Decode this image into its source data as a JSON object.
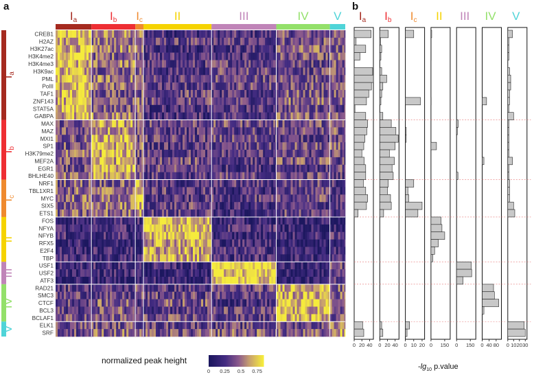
{
  "figure": {
    "panel_a": "a",
    "panel_b": "b",
    "col_groups": [
      {
        "main": "I",
        "sub": "a",
        "color": "#a52a1f"
      },
      {
        "main": "I",
        "sub": "b",
        "color": "#ee2e33"
      },
      {
        "main": "I",
        "sub": "c",
        "color": "#ef8a2e"
      },
      {
        "main": "II",
        "sub": "",
        "color": "#f5d300"
      },
      {
        "main": "III",
        "sub": "",
        "color": "#c084b8"
      },
      {
        "main": "IV",
        "sub": "",
        "color": "#93e06a"
      },
      {
        "main": "V",
        "sub": "",
        "color": "#4fd4d8"
      }
    ],
    "rows": [
      "CREB1",
      "H2AZ",
      "H3K27ac",
      "H3K4me2",
      "H3K4me3",
      "H3K9ac",
      "PML",
      "PolII",
      "TAF1",
      "ZNF143",
      "STAT5A",
      "GABPA",
      "MAX",
      "MAZ",
      "MXI1",
      "SP1",
      "H3K79me2",
      "MEF2A",
      "EGR1",
      "BHLHE40",
      "NRF1",
      "TBL1XR1",
      "MYC",
      "SIX5",
      "ETS1",
      "FOS",
      "NFYA",
      "NFYB",
      "RFX5",
      "E2F4",
      "TBP",
      "USF1",
      "USF2",
      "ATF3",
      "RAD21",
      "SMC3",
      "CTCF",
      "BCL3",
      "BCLAF1",
      "ELK1",
      "SRF"
    ],
    "legend": {
      "title": "normalized peak height",
      "ticks": [
        "0",
        "0.25",
        "0.5",
        "0.75"
      ]
    },
    "xlabel_prefix": "-",
    "xlabel_lg": "lg",
    "xlabel_sub": "10",
    "xlabel_suffix": " p.value",
    "bar_axes": [
      {
        "ticks": [
          "0",
          "20",
          "40"
        ]
      },
      {
        "ticks": [
          "0",
          "20",
          "40"
        ]
      },
      {
        "ticks": [
          "0",
          "10",
          "20"
        ]
      },
      {
        "ticks": [
          "0",
          "150"
        ]
      },
      {
        "ticks": [
          "0",
          "150"
        ]
      },
      {
        "ticks": [
          "0",
          "40",
          "80"
        ]
      },
      {
        "ticks": [
          "0",
          "10",
          "20",
          "30"
        ]
      }
    ]
  },
  "chart_data": {
    "type": "heatmap",
    "title": "",
    "row_groups": [
      {
        "group": "Ia",
        "size": 12
      },
      {
        "group": "Ib",
        "size": 8
      },
      {
        "group": "Ic",
        "size": 5
      },
      {
        "group": "II",
        "size": 6
      },
      {
        "group": "III",
        "size": 3
      },
      {
        "group": "IV",
        "size": 5
      },
      {
        "group": "V",
        "size": 2
      }
    ],
    "col_group_fractions": [
      0.163,
      0.2,
      0.037,
      0.31,
      0.295,
      0.244,
      0.07
    ],
    "heatmap_block_means": [
      [
        0.7,
        0.5,
        0.5,
        0.3,
        0.3,
        0.4,
        0.4
      ],
      [
        0.4,
        0.65,
        0.4,
        0.35,
        0.3,
        0.35,
        0.35
      ],
      [
        0.45,
        0.45,
        0.7,
        0.3,
        0.25,
        0.3,
        0.3
      ],
      [
        0.2,
        0.2,
        0.2,
        0.7,
        0.2,
        0.2,
        0.2
      ],
      [
        0.15,
        0.15,
        0.15,
        0.15,
        0.8,
        0.15,
        0.3
      ],
      [
        0.35,
        0.35,
        0.35,
        0.35,
        0.3,
        0.7,
        0.45
      ],
      [
        0.45,
        0.45,
        0.45,
        0.4,
        0.4,
        0.4,
        0.65
      ]
    ],
    "color_scale": {
      "min": 0,
      "max": 0.85,
      "colormap": "viridis-like (navy → purple → yellow)"
    },
    "bar_panels": [
      {
        "group": "Ia",
        "xmax": 50,
        "values": [
          44,
          5,
          30,
          15,
          0,
          48,
          50,
          45,
          38,
          32,
          2,
          30,
          35,
          33,
          28,
          25,
          20,
          26,
          30,
          30,
          24,
          30,
          35,
          32,
          10,
          0,
          0,
          0,
          0,
          0,
          0,
          0,
          0,
          0,
          0,
          0,
          0,
          0,
          0,
          22,
          25
        ]
      },
      {
        "group": "Ib",
        "xmax": 50,
        "values": [
          22,
          2,
          5,
          3,
          0,
          5,
          18,
          8,
          5,
          3,
          0,
          8,
          30,
          42,
          48,
          40,
          25,
          38,
          32,
          35,
          22,
          20,
          28,
          30,
          10,
          0,
          0,
          0,
          0,
          0,
          0,
          0,
          0,
          0,
          0,
          0,
          0,
          0,
          0,
          5,
          8
        ]
      },
      {
        "group": "Ic",
        "xmax": 23,
        "values": [
          10,
          0,
          0,
          0,
          0,
          0,
          0,
          0,
          0,
          18,
          0,
          0,
          0,
          1,
          1,
          0,
          0,
          0,
          0,
          0,
          10,
          3,
          4,
          20,
          15,
          0,
          0,
          0,
          0,
          0,
          0,
          0,
          0,
          0,
          0,
          0,
          0,
          0,
          0,
          5,
          2
        ]
      },
      {
        "group": "II",
        "xmax": 210,
        "values": [
          8,
          2,
          2,
          2,
          0,
          0,
          0,
          0,
          0,
          2,
          0,
          0,
          0,
          0,
          0,
          60,
          0,
          0,
          0,
          0,
          0,
          0,
          0,
          0,
          0,
          110,
          120,
          150,
          80,
          40,
          20,
          0,
          0,
          0,
          0,
          0,
          0,
          0,
          0,
          0,
          0
        ]
      },
      {
        "group": "III",
        "xmax": 210,
        "values": [
          0,
          0,
          0,
          0,
          0,
          0,
          0,
          0,
          0,
          0,
          0,
          0,
          18,
          8,
          0,
          0,
          0,
          0,
          0,
          15,
          0,
          0,
          0,
          0,
          0,
          0,
          0,
          0,
          0,
          0,
          0,
          160,
          165,
          70,
          0,
          0,
          0,
          0,
          0,
          0,
          0
        ]
      },
      {
        "group": "IV",
        "xmax": 110,
        "values": [
          0,
          0,
          0,
          0,
          0,
          0,
          0,
          0,
          0,
          25,
          0,
          0,
          0,
          0,
          0,
          0,
          0,
          10,
          0,
          0,
          0,
          0,
          0,
          0,
          0,
          0,
          0,
          0,
          0,
          0,
          0,
          0,
          0,
          0,
          65,
          70,
          95,
          10,
          0,
          0,
          0
        ]
      },
      {
        "group": "V",
        "xmax": 33,
        "values": [
          8,
          2,
          2,
          2,
          0,
          3,
          5,
          5,
          3,
          3,
          2,
          10,
          2,
          2,
          2,
          2,
          2,
          8,
          2,
          2,
          3,
          3,
          3,
          10,
          12,
          0,
          0,
          0,
          0,
          0,
          0,
          0,
          0,
          0,
          0,
          0,
          0,
          0,
          0,
          28,
          30
        ]
      }
    ]
  }
}
